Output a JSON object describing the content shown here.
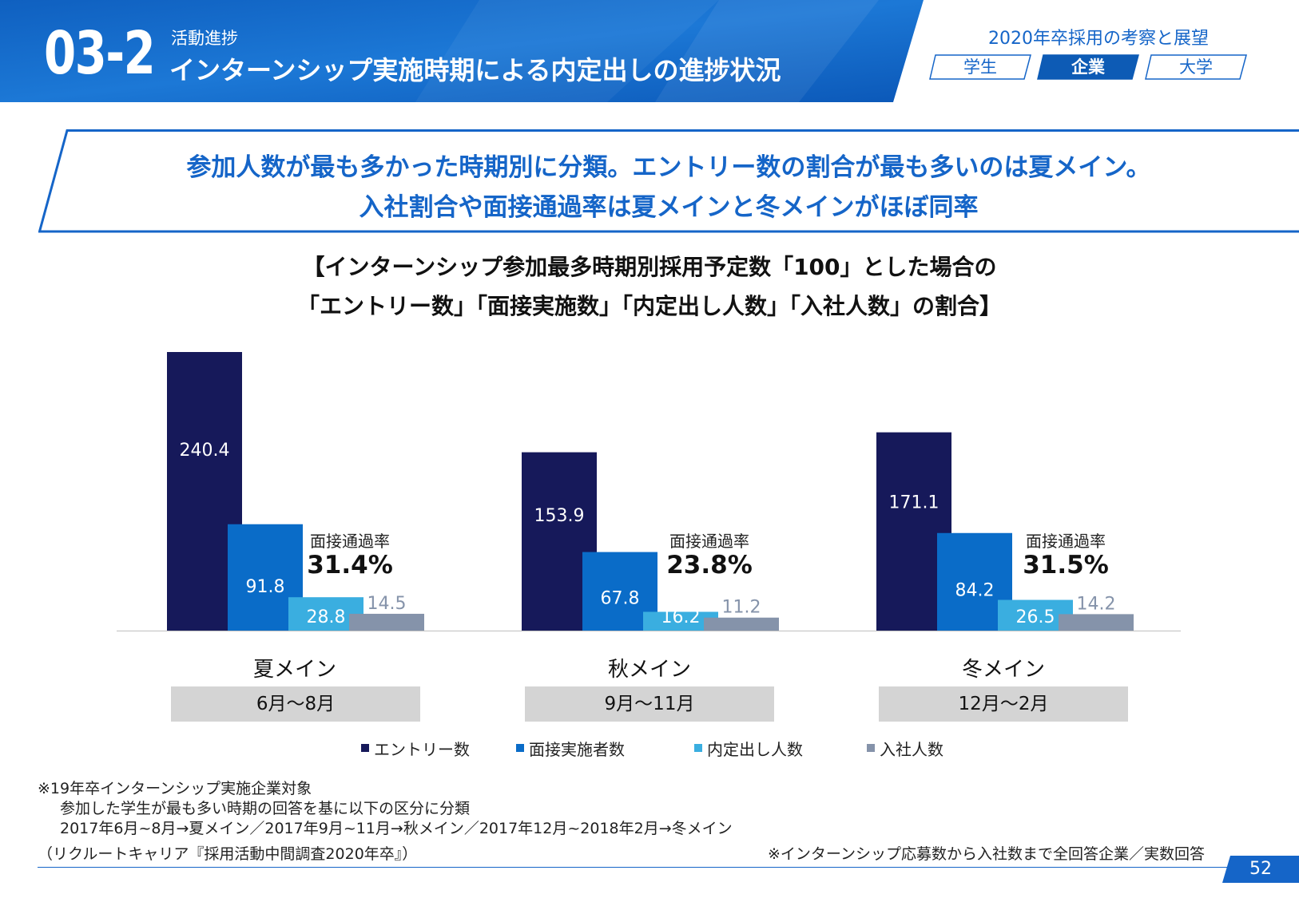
{
  "header": {
    "section_number": "03-2",
    "section_category": "活動進捗",
    "title": "インターンシップ実施時期による内定出しの進捗状況",
    "report_title": "2020年卒採用の考察と展望",
    "tabs": [
      {
        "label": "学生",
        "active": false
      },
      {
        "label": "企業",
        "active": true
      },
      {
        "label": "大学",
        "active": false
      }
    ]
  },
  "banner": {
    "line1": "参加人数が最も多かった時期別に分類。エントリー数の割合が最も多いのは夏メイン。",
    "line2": "入社割合や面接通過率は夏メインと冬メインがほぼ同率"
  },
  "chart_title": {
    "line1": "【インターンシップ参加最多時期別採用予定数「100」とした場合の",
    "line2": "「エントリー数」「面接実施数」「内定出し人数」「入社人数」の割合】"
  },
  "chart_data": {
    "type": "bar",
    "categories": [
      "夏メイン",
      "秋メイン",
      "冬メイン"
    ],
    "periods": [
      "6月～8月",
      "9月～11月",
      "12月～2月"
    ],
    "series": [
      {
        "name": "エントリー数",
        "color": "#16195a",
        "values": [
          240.4,
          153.9,
          171.1
        ],
        "labels": [
          "240.4",
          "153.9",
          "171.1"
        ]
      },
      {
        "name": "面接実施者数",
        "color": "#0a6cc8",
        "values": [
          91.8,
          67.8,
          84.2
        ],
        "labels": [
          "91.8",
          "67.8",
          "84.2"
        ]
      },
      {
        "name": "内定出し人数",
        "color": "#3aaee0",
        "values": [
          28.8,
          16.2,
          26.5
        ],
        "labels": [
          "28.8",
          "16.2",
          "26.5"
        ]
      },
      {
        "name": "入社人数",
        "color": "#8593aa",
        "values": [
          14.5,
          11.2,
          14.2
        ],
        "labels": [
          "14.5",
          "11.2",
          "14.2"
        ]
      }
    ],
    "annotation_label": "面接通過率",
    "pass_rates": [
      "31.4%",
      "23.8%",
      "31.5%"
    ],
    "ylim": [
      0,
      240.4
    ],
    "grid": false,
    "legend_position": "bottom"
  },
  "notes": {
    "line1": "※19年卒インターンシップ実施企業対象",
    "line2": "参加した学生が最も多い時期の回答を基に以下の区分に分類",
    "line3": "2017年6月~8月→夏メイン／2017年9月~11月→秋メイン／2017年12月~2018年2月→冬メイン",
    "source": "（リクルートキャリア『採用活動中間調査2020年卒』）",
    "right_note": "※インターンシップ応募数から入社数まで全回答企業／実数回答"
  },
  "page_number": "52",
  "colors": {
    "brand_blue": "#1565c8",
    "header_dark": "#0d5bb5",
    "label_box": "#d4d4d4"
  }
}
